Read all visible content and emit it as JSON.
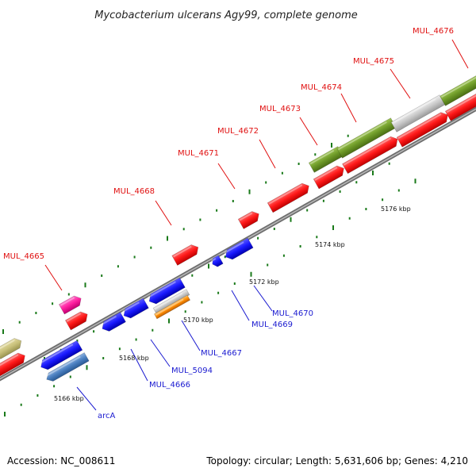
{
  "title": "Mycobacterium ulcerans Agy99, complete genome",
  "footer": {
    "accession": "Accession: NC_008611",
    "topology": "Topology: circular; Length: 5,631,606 bp; Genes: 4,210"
  },
  "scale_labels": [
    "5166 kbp",
    "5168 kbp",
    "5170 kbp",
    "5172 kbp",
    "5174 kbp",
    "5176 kbp"
  ],
  "genes_forward": [
    {
      "label": "MUL_4665",
      "color": "#ff1a1a"
    },
    {
      "label": "MUL_4668",
      "color": "#ff1a1a"
    },
    {
      "label": "MUL_4671",
      "color": "#ff1a1a"
    },
    {
      "label": "MUL_4672",
      "color": "#ff1a1a"
    },
    {
      "label": "MUL_4673",
      "color": "#ff1a1a"
    },
    {
      "label": "MUL_4674",
      "color": "#ff1a1a"
    },
    {
      "label": "MUL_4675",
      "color": "#ff1a1a"
    },
    {
      "label": "MUL_4676",
      "color": "#ff1a1a"
    }
  ],
  "genes_reverse": [
    {
      "label": "arcA",
      "color": "#1a1aff"
    },
    {
      "label": "MUL_4666",
      "color": "#1a1aff"
    },
    {
      "label": "MUL_5094",
      "color": "#1a1aff"
    },
    {
      "label": "MUL_4667",
      "color": "#1a1aff"
    },
    {
      "label": "MUL_4669",
      "color": "#1a1aff"
    },
    {
      "label": "MUL_4670",
      "color": "#1a1aff"
    }
  ],
  "colors": {
    "forward_gene": "#ff1a1a",
    "reverse_gene": "#1a1aff",
    "rna_gene": "#ff1fa0",
    "operon_green": "#6e9a28",
    "operon_grey": "#c8c8c8",
    "steelblue": "#4a7fc0",
    "orange": "#ff8c00",
    "khaki": "#c8c07a",
    "tick": "#1a7a1a",
    "backbone": "#8a8a8a"
  }
}
